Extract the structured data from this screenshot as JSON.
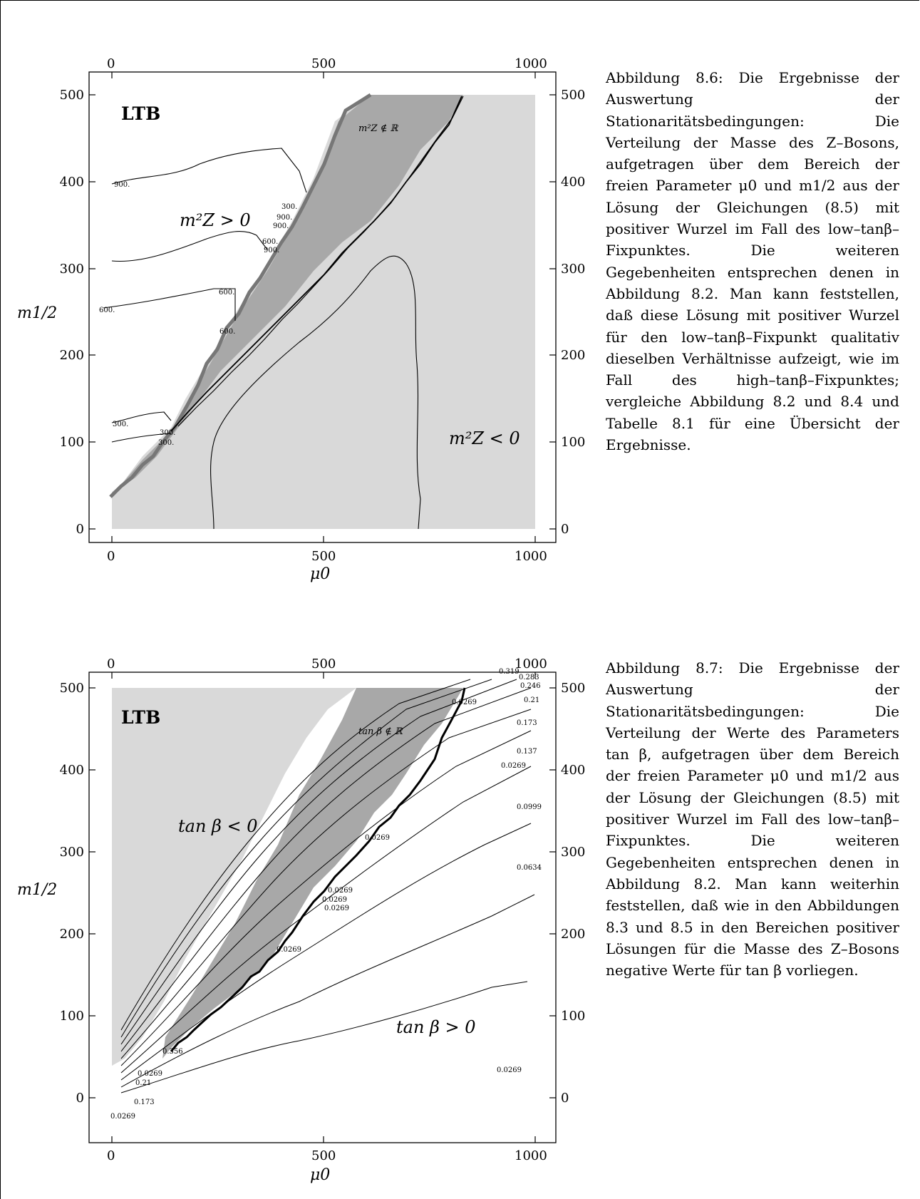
{
  "figures": [
    {
      "id": "fig-8-6",
      "panel_label": "LTB",
      "x_ticks": [
        "0",
        "500",
        "1000"
      ],
      "y_ticks": [
        "0",
        "100",
        "200",
        "300",
        "400",
        "500"
      ],
      "x_label": "μ0",
      "y_label": "m1/2",
      "region_labels": {
        "upper_left": "m²Z > 0",
        "lower_right": "m²Z < 0",
        "band": "m²Z ∉ ℝ"
      },
      "contour_labels": [
        "900.",
        "900.",
        "900.",
        "900.",
        "300.",
        "600.",
        "600.",
        "600.",
        "600.",
        "300.",
        "300.",
        "300."
      ]
    },
    {
      "id": "fig-8-7",
      "panel_label": "LTB",
      "x_ticks": [
        "0",
        "500",
        "1000"
      ],
      "y_ticks": [
        "0",
        "100",
        "200",
        "300",
        "400",
        "500"
      ],
      "x_label": "μ0",
      "y_label": "m1/2",
      "region_labels": {
        "upper_left": "tan β < 0",
        "lower_right": "tan β > 0",
        "band": "tan β ∉ ℝ"
      },
      "contour_labels": [
        "0.0269",
        "0.0634",
        "0.0999",
        "0.137",
        "0.173",
        "0.21",
        "0.246",
        "0.283",
        "0.319",
        "0.0269",
        "0.0269",
        "0.0269",
        "0.0269",
        "0.0269",
        "0.0269",
        "0.356",
        "0.0269",
        "0.21",
        "0.173",
        "0.0269",
        "0.0269"
      ]
    }
  ],
  "captions": [
    "Abbildung 8.6: Die Ergebnisse der Auswertung der Stationaritätsbedingungen: Die Verteilung der Masse des Z–Bosons, aufgetragen über dem Bereich der freien Parameter μ0 und m1/2 aus der Lösung der Gleichungen (8.5) mit positiver Wurzel im Fall des low–tanβ–Fixpunktes. Die weiteren Gegebenheiten entsprechen denen in Abbildung 8.2. Man kann feststellen, daß diese Lösung mit positiver Wurzel für den low–tanβ–Fixpunkt qualitativ dieselben Verhältnisse aufzeigt, wie im Fall des high–tanβ–Fixpunktes; vergleiche Abbildung 8.2 und 8.4 und Tabelle 8.1 für eine Übersicht der Ergebnisse.",
    "Abbildung 8.7: Die Ergebnisse der Auswertung der Stationaritätsbedingungen: Die Verteilung der Werte des Parameters tan β, aufgetragen über dem Bereich der freien Parameter μ0 und m1/2 aus der Lösung der Gleichungen (8.5) mit positiver Wurzel im Fall des low–tanβ–Fixpunktes. Die weiteren Gegebenheiten entsprechen denen in Abbildung 8.2. Man kann weiterhin feststellen, daß wie in den Abbildungen 8.3 und 8.5 in den Bereichen positiver Lösungen für die Masse des Z–Bosons negative Werte für tan β vorliegen."
  ]
}
